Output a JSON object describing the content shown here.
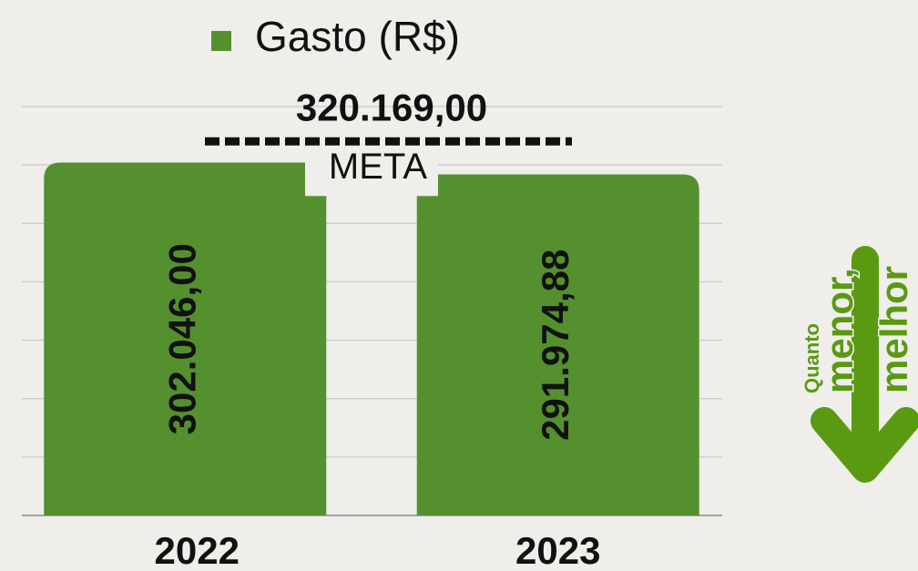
{
  "chart_data": {
    "type": "bar",
    "categories": [
      "2022",
      "2023"
    ],
    "series": [
      {
        "name": "Gasto (R$)",
        "color": "#55902f",
        "values": [
          302046,
          291974.88
        ],
        "value_labels": [
          "302.046,00",
          "291.974,88"
        ]
      }
    ],
    "ylim": [
      0,
      350000
    ],
    "yticks": [
      0,
      50000,
      100000,
      150000,
      200000,
      250000,
      300000,
      350000
    ],
    "grid": true,
    "legend": "top",
    "annotation": {
      "value": 320169,
      "label": "320.169,00",
      "text": "META"
    },
    "side_note": [
      "Quanto",
      "menor,",
      "melhor"
    ]
  }
}
